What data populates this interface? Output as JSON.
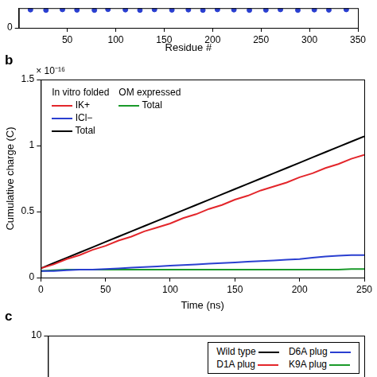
{
  "chart_data": [
    {
      "type": "scatter",
      "x_label": "Residue #",
      "x": [
        12,
        28,
        45,
        60,
        78,
        92,
        110,
        125,
        140,
        158,
        175,
        190,
        205,
        222,
        238,
        255,
        270,
        288,
        305,
        320,
        338
      ],
      "series": [
        {
          "name": "Residue",
          "color": "#2a3fd0",
          "marker": "circle",
          "values": [
            0.92,
            0.9,
            0.93,
            0.91,
            0.9,
            0.94,
            0.92,
            0.9,
            0.93,
            0.91,
            0.92,
            0.9,
            0.93,
            0.92,
            0.9,
            0.91,
            0.93,
            0.9,
            0.92,
            0.91,
            0.93
          ]
        }
      ],
      "xlim": [
        0,
        350
      ],
      "xticks": [
        50,
        100,
        150,
        200,
        250,
        300,
        350
      ],
      "ylim": [
        0,
        1
      ],
      "yticks": [
        0
      ],
      "grid": false
    },
    {
      "type": "line",
      "title": "b",
      "x_label": "Time (ns)",
      "y_label": "Cumulative charge (C)",
      "annotations": [
        "× 10⁻¹⁶",
        "In vitro folded",
        "OM expressed"
      ],
      "x": [
        0,
        10,
        20,
        30,
        40,
        50,
        60,
        70,
        80,
        90,
        100,
        110,
        120,
        130,
        140,
        150,
        160,
        170,
        180,
        190,
        200,
        210,
        220,
        230,
        240,
        250
      ],
      "series": [
        {
          "name": "IK+",
          "color": "#e3262b",
          "values": [
            0.07,
            0.1,
            0.14,
            0.17,
            0.21,
            0.24,
            0.28,
            0.31,
            0.35,
            0.38,
            0.41,
            0.45,
            0.48,
            0.52,
            0.55,
            0.59,
            0.62,
            0.66,
            0.69,
            0.72,
            0.76,
            0.79,
            0.83,
            0.86,
            0.9,
            0.93
          ]
        },
        {
          "name": "ICl−",
          "color": "#2a3fd0",
          "values": [
            0.05,
            0.05,
            0.055,
            0.06,
            0.06,
            0.065,
            0.07,
            0.075,
            0.08,
            0.085,
            0.09,
            0.095,
            0.1,
            0.105,
            0.11,
            0.115,
            0.12,
            0.125,
            0.13,
            0.135,
            0.14,
            0.15,
            0.16,
            0.165,
            0.17,
            0.17
          ]
        },
        {
          "name": "Total",
          "color": "#000000",
          "values": [
            0.07,
            0.11,
            0.15,
            0.19,
            0.23,
            0.27,
            0.31,
            0.35,
            0.39,
            0.43,
            0.47,
            0.51,
            0.55,
            0.59,
            0.63,
            0.67,
            0.71,
            0.75,
            0.79,
            0.83,
            0.87,
            0.91,
            0.95,
            0.99,
            1.03,
            1.07
          ]
        },
        {
          "name": "Total",
          "color": "#1a9a2a",
          "values": [
            0.05,
            0.055,
            0.06,
            0.06,
            0.06,
            0.06,
            0.06,
            0.06,
            0.06,
            0.06,
            0.06,
            0.06,
            0.06,
            0.06,
            0.06,
            0.06,
            0.06,
            0.06,
            0.06,
            0.06,
            0.06,
            0.06,
            0.06,
            0.06,
            0.065,
            0.065
          ]
        }
      ],
      "xlim": [
        0,
        250
      ],
      "xticks": [
        0,
        50,
        100,
        150,
        200,
        250
      ],
      "ylim": [
        0,
        1.5
      ],
      "yticks": [
        0,
        0.5,
        1,
        1.5
      ],
      "grid": false
    },
    {
      "type": "line",
      "title": "c",
      "x": [],
      "series": [
        {
          "name": "Wild type",
          "color": "#000000",
          "values": []
        },
        {
          "name": "D1A plug",
          "color": "#e3262b",
          "values": []
        },
        {
          "name": "D6A plug",
          "color": "#2a3fd0",
          "values": []
        },
        {
          "name": "K9A plug",
          "color": "#1a9a2a",
          "values": []
        }
      ],
      "ylim": [
        0,
        10
      ],
      "yticks": [
        10
      ],
      "tick_labels": "y",
      "grid": false
    }
  ]
}
